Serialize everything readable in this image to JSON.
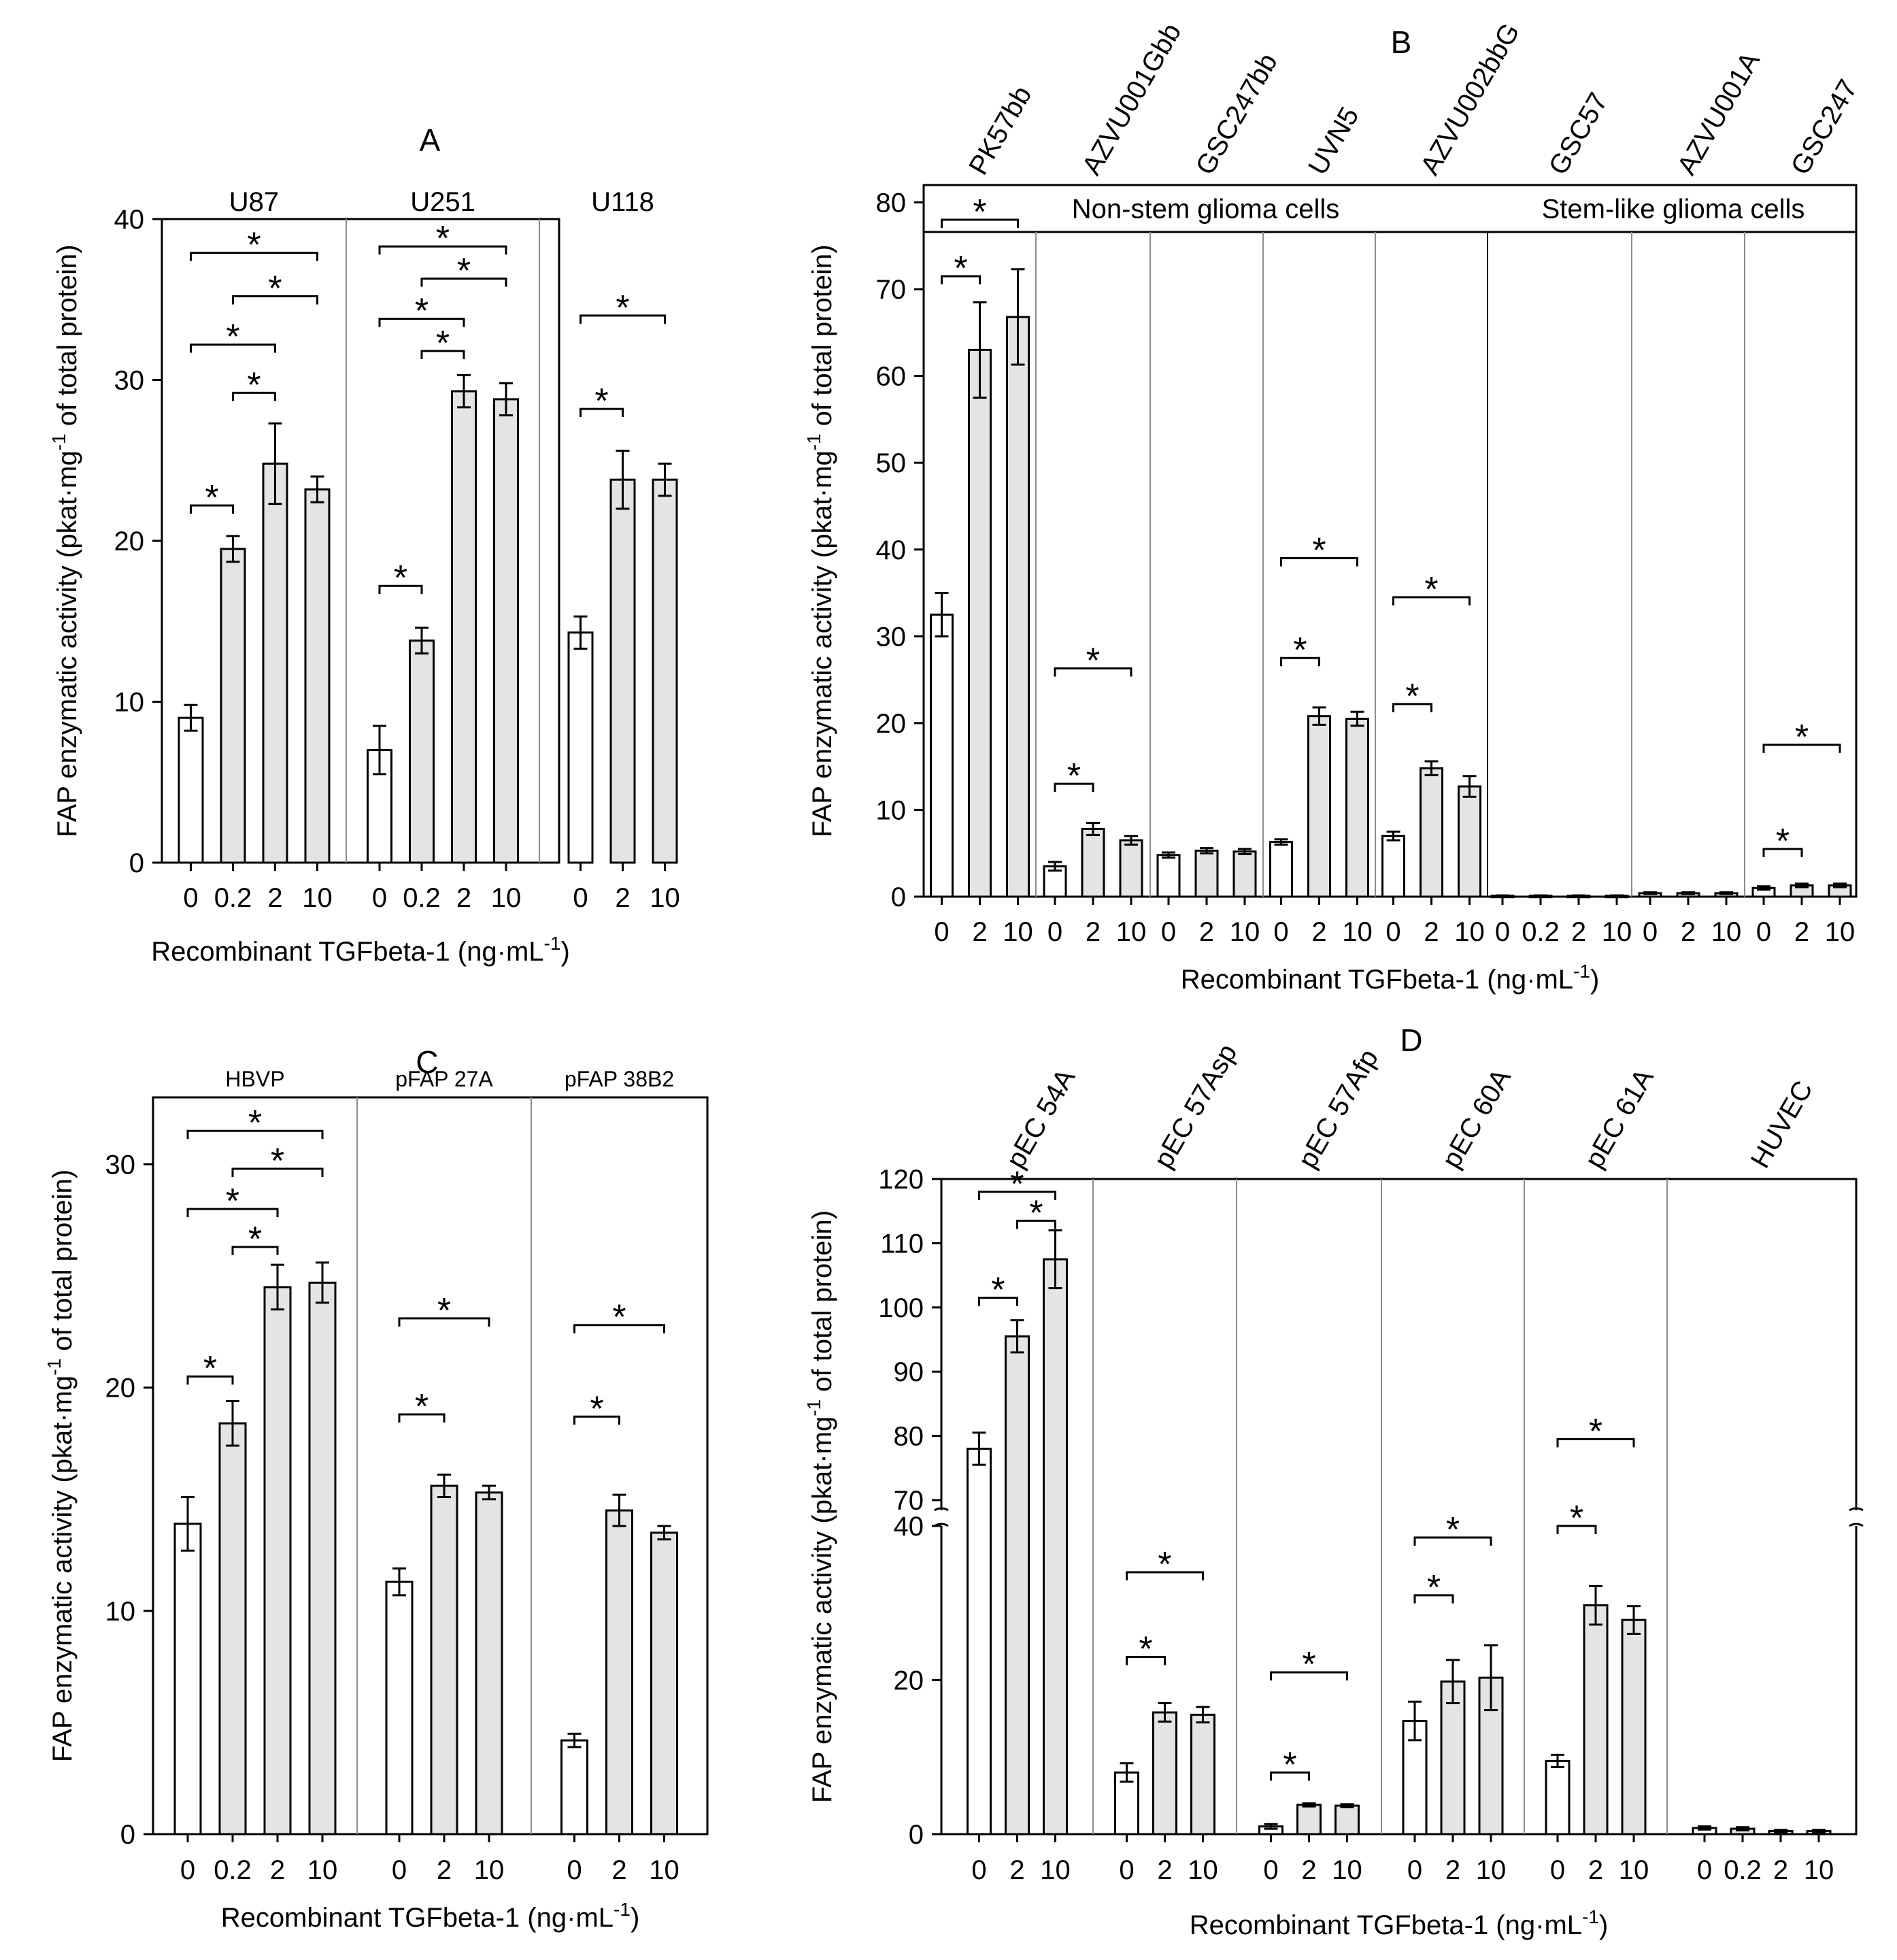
{
  "figure": {
    "x_label_main": "Recombinant TGFbeta-1 (ng",
    "x_label_dot": "·",
    "x_label_unit": "mL",
    "x_label_exp": "-1",
    "x_label_close": ")",
    "y_label_main": "FAP enzymatic activity (pkat",
    "y_label_dot": "·",
    "y_label_unit": "mg",
    "y_label_exp": "-1",
    "y_label_rest": " of total protein)",
    "sig_marker": "*"
  },
  "colors": {
    "control_bar": "#ffffff",
    "treated_bar": "#e4e4e4",
    "stroke": "#000000",
    "divider": "#8c8c8c"
  },
  "chart_data": [
    {
      "id": "A",
      "type": "bar",
      "panel_label": "A",
      "ylim": [
        0,
        40
      ],
      "yticks": [
        0,
        10,
        20,
        30,
        40
      ],
      "groups": [
        {
          "name": "U87",
          "categories": [
            "0",
            "0.2",
            "2",
            "10"
          ],
          "values": [
            9.0,
            19.5,
            24.8,
            23.2
          ],
          "errors": [
            0.8,
            0.8,
            2.5,
            0.8
          ],
          "sig": [
            [
              0,
              1,
              22.2
            ],
            [
              0,
              2,
              32.2
            ],
            [
              1,
              2,
              29.2
            ],
            [
              0,
              3,
              37.9
            ],
            [
              1,
              3,
              35.2
            ]
          ]
        },
        {
          "name": "U251",
          "categories": [
            "0",
            "0.2",
            "2",
            "10"
          ],
          "values": [
            7.0,
            13.8,
            29.3,
            28.8
          ],
          "errors": [
            1.5,
            0.8,
            1.0,
            1.0
          ],
          "sig": [
            [
              0,
              1,
              17.2
            ],
            [
              0,
              2,
              33.8
            ],
            [
              1,
              2,
              31.8
            ],
            [
              0,
              3,
              38.3
            ],
            [
              1,
              3,
              36.3
            ]
          ]
        },
        {
          "name": "U118",
          "categories": [
            "0",
            "2",
            "10"
          ],
          "values": [
            14.3,
            23.8,
            23.8
          ],
          "errors": [
            1.0,
            1.8,
            1.0
          ],
          "sig": [
            [
              0,
              1,
              28.2
            ],
            [
              0,
              2,
              34.0
            ]
          ]
        }
      ]
    },
    {
      "id": "B",
      "type": "bar",
      "panel_label": "B",
      "ylim": [
        0,
        82
      ],
      "yticks": [
        0,
        10,
        20,
        30,
        40,
        50,
        60,
        70,
        80
      ],
      "header_sections": [
        {
          "label": "Non-stem glioma cells",
          "from_group": 0,
          "to_group": 4
        },
        {
          "label": "Stem-like glioma cells",
          "from_group": 5,
          "to_group": 7
        }
      ],
      "groups": [
        {
          "name": "PK57bb",
          "categories": [
            "0",
            "2",
            "10"
          ],
          "values": [
            32.5,
            63.0,
            66.8
          ],
          "errors": [
            2.5,
            5.5,
            5.5
          ],
          "sig": [
            [
              0,
              1,
              71.5
            ],
            [
              0,
              2,
              78.0
            ]
          ]
        },
        {
          "name": "AZVU001Gbb",
          "categories": [
            "0",
            "2",
            "10"
          ],
          "values": [
            3.5,
            7.8,
            6.5
          ],
          "errors": [
            0.5,
            0.7,
            0.5
          ],
          "sig": [
            [
              0,
              1,
              13.0
            ],
            [
              0,
              2,
              26.3
            ]
          ]
        },
        {
          "name": "GSC247bb",
          "categories": [
            "0",
            "2",
            "10"
          ],
          "values": [
            4.8,
            5.3,
            5.2
          ],
          "errors": [
            0.3,
            0.3,
            0.3
          ],
          "sig": []
        },
        {
          "name": "UVN5",
          "categories": [
            "0",
            "2",
            "10"
          ],
          "values": [
            6.3,
            20.8,
            20.5
          ],
          "errors": [
            0.3,
            1.0,
            0.8
          ],
          "sig": [
            [
              0,
              1,
              27.5
            ],
            [
              0,
              2,
              39.0
            ]
          ]
        },
        {
          "name": "AZVU002bbG",
          "categories": [
            "0",
            "2",
            "10"
          ],
          "values": [
            7.0,
            14.8,
            12.7
          ],
          "errors": [
            0.5,
            0.8,
            1.2
          ],
          "sig": [
            [
              0,
              1,
              22.2
            ],
            [
              0,
              2,
              34.5
            ]
          ]
        },
        {
          "name": "GSC57",
          "categories": [
            "0",
            "0.2",
            "2",
            "10"
          ],
          "values": [
            0.1,
            0.1,
            0.1,
            0.1
          ],
          "errors": [
            0.05,
            0.05,
            0.05,
            0.05
          ],
          "sig": []
        },
        {
          "name": "AZVU001A",
          "categories": [
            "0",
            "2",
            "10"
          ],
          "values": [
            0.4,
            0.4,
            0.4
          ],
          "errors": [
            0.1,
            0.1,
            0.1
          ],
          "sig": []
        },
        {
          "name": "GSC247",
          "categories": [
            "0",
            "2",
            "10"
          ],
          "values": [
            1.0,
            1.3,
            1.3
          ],
          "errors": [
            0.2,
            0.2,
            0.2
          ],
          "sig": [
            [
              0,
              1,
              5.5
            ],
            [
              0,
              2,
              17.5
            ]
          ]
        }
      ]
    },
    {
      "id": "C",
      "type": "bar",
      "panel_label": "C",
      "ylim": [
        0,
        33
      ],
      "yticks": [
        0,
        10,
        20,
        30
      ],
      "groups": [
        {
          "name": "HBVP",
          "categories": [
            "0",
            "0.2",
            "2",
            "10"
          ],
          "values": [
            13.9,
            18.4,
            24.5,
            24.7
          ],
          "errors": [
            1.2,
            1.0,
            1.0,
            0.9
          ],
          "sig": [
            [
              0,
              1,
              20.5
            ],
            [
              0,
              2,
              28.0
            ],
            [
              1,
              2,
              26.3
            ],
            [
              0,
              3,
              31.5
            ],
            [
              1,
              3,
              29.8
            ]
          ]
        },
        {
          "name": "pFAP 27A",
          "categories": [
            "0",
            "2",
            "10"
          ],
          "values": [
            11.3,
            15.6,
            15.3
          ],
          "errors": [
            0.6,
            0.5,
            0.3
          ],
          "sig": [
            [
              0,
              1,
              18.8
            ],
            [
              0,
              2,
              23.1
            ]
          ]
        },
        {
          "name": "pFAP 38B2",
          "categories": [
            "0",
            "2",
            "10"
          ],
          "values": [
            4.2,
            14.5,
            13.5
          ],
          "errors": [
            0.3,
            0.7,
            0.3
          ],
          "sig": [
            [
              0,
              1,
              18.7
            ],
            [
              0,
              2,
              22.8
            ]
          ]
        }
      ]
    },
    {
      "id": "D",
      "type": "bar",
      "panel_label": "D",
      "broken_axis": true,
      "ylim_low": [
        0,
        40
      ],
      "yticks_low": [
        0,
        20,
        40
      ],
      "ylim_high": [
        70,
        120
      ],
      "yticks_high": [
        70,
        80,
        90,
        100,
        110,
        120
      ],
      "groups": [
        {
          "name": "pEC 54A",
          "categories": [
            "0",
            "2",
            "10"
          ],
          "values": [
            78.0,
            95.5,
            107.5
          ],
          "errors": [
            2.5,
            2.5,
            4.5
          ],
          "sig": [
            [
              0,
              1,
              101.5
            ],
            [
              0,
              2,
              118.0
            ],
            [
              1,
              2,
              113.5
            ]
          ]
        },
        {
          "name": "pEC 57Asp",
          "categories": [
            "0",
            "2",
            "10"
          ],
          "values": [
            8.0,
            15.8,
            15.5
          ],
          "errors": [
            1.2,
            1.2,
            1.0
          ],
          "sig": [
            [
              0,
              1,
              23.0
            ],
            [
              0,
              2,
              34.0
            ]
          ]
        },
        {
          "name": "pEC 57Afp",
          "categories": [
            "0",
            "2",
            "10"
          ],
          "values": [
            1.0,
            3.8,
            3.7
          ],
          "errors": [
            0.3,
            0.2,
            0.2
          ],
          "sig": [
            [
              0,
              1,
              8.0
            ],
            [
              0,
              2,
              21.0
            ]
          ]
        },
        {
          "name": "pEC 60A",
          "categories": [
            "0",
            "2",
            "10"
          ],
          "values": [
            14.7,
            19.8,
            20.3
          ],
          "errors": [
            2.5,
            2.8,
            4.2
          ],
          "sig": [
            [
              0,
              1,
              31.0
            ],
            [
              0,
              2,
              38.5
            ]
          ]
        },
        {
          "name": "pEC 61A",
          "categories": [
            "0",
            "2",
            "10"
          ],
          "values": [
            9.5,
            29.7,
            27.8
          ],
          "errors": [
            0.8,
            2.5,
            1.8
          ],
          "sig": [
            [
              0,
              1,
              40.0
            ],
            [
              0,
              2,
              79.5
            ]
          ]
        },
        {
          "name": "HUVEC",
          "categories": [
            "0",
            "0.2",
            "2",
            "10"
          ],
          "values": [
            0.8,
            0.7,
            0.4,
            0.4
          ],
          "errors": [
            0.2,
            0.2,
            0.15,
            0.15
          ],
          "sig": []
        }
      ]
    }
  ]
}
